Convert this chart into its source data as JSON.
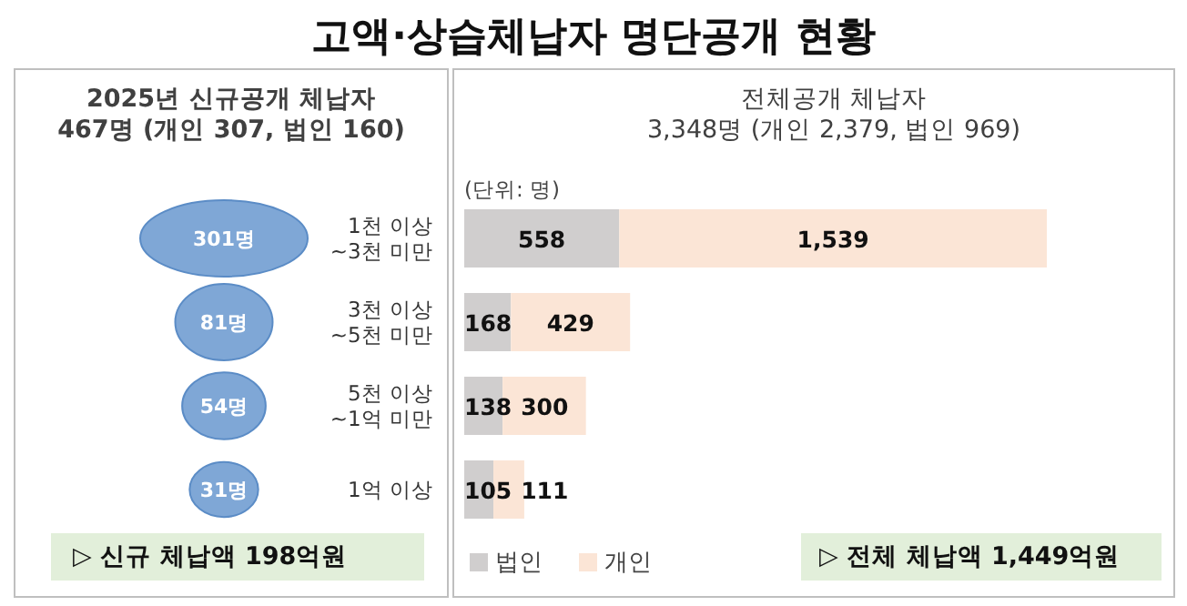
{
  "chart_data": [
    {
      "type": "other",
      "title": "고액·상습체납자 명단공개 현황",
      "subtitle": "2025년 신규공개 체납자\n467명 (개인 307, 법인 160)",
      "values": [
        301,
        81,
        54,
        31
      ],
      "value_labels": [
        "301명",
        "81명",
        "54명",
        "31명"
      ],
      "color": "#7fa7d6",
      "annotations": [
        "▷ 신규 체납액 198억원"
      ]
    },
    {
      "type": "bar",
      "orientation": "horizontal",
      "stacked": true,
      "subtitle": "전체공개 체납자\n3,348명 (개인 2,379, 법인 969)",
      "categories": [
        "1천 이상\n~3천 미만",
        "3천 이상\n~5천 미만",
        "5천 이상\n~1억 미만",
        "1억 이상"
      ],
      "series": [
        {
          "name": "법인",
          "color": "#d0cece",
          "values": [
            558,
            168,
            138,
            105
          ],
          "value_labels": [
            "558",
            "168",
            "138",
            "105"
          ]
        },
        {
          "name": "개인",
          "color": "#fbe5d6",
          "values": [
            1539,
            429,
            300,
            111
          ],
          "value_labels": [
            "1,539",
            "429",
            "300",
            "111"
          ]
        }
      ],
      "legend": "bottom left",
      "annotations": [
        "(단위: 명)",
        "▷ 전체 체납액 1,449억원"
      ]
    }
  ]
}
